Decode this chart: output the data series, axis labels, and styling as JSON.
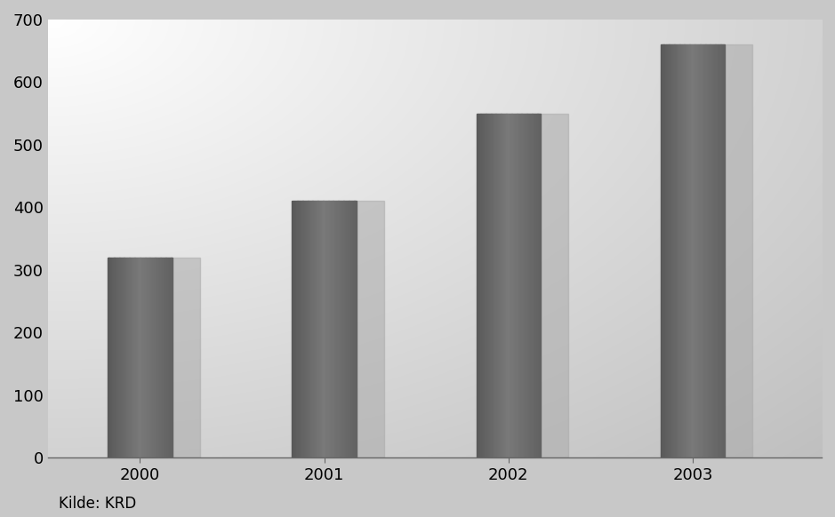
{
  "categories": [
    "2000",
    "2001",
    "2002",
    "2003"
  ],
  "values": [
    320,
    410,
    550,
    660
  ],
  "ylim": [
    0,
    700
  ],
  "yticks": [
    0,
    100,
    200,
    300,
    400,
    500,
    600,
    700
  ],
  "source_text": "Kilde: KRD",
  "tick_fontsize": 13,
  "source_fontsize": 12,
  "bar_width": 0.35,
  "xlim": [
    -0.5,
    3.7
  ]
}
